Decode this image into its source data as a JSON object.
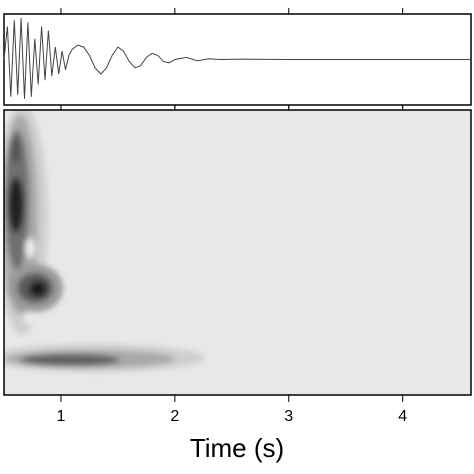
{
  "chart_data": [
    {
      "type": "line",
      "x": [
        0.5,
        0.53,
        0.56,
        0.59,
        0.62,
        0.65,
        0.68,
        0.71,
        0.74,
        0.77,
        0.8,
        0.83,
        0.86,
        0.89,
        0.92,
        0.95,
        0.98,
        1.01,
        1.04,
        1.07,
        1.1,
        1.15,
        1.2,
        1.25,
        1.3,
        1.35,
        1.4,
        1.45,
        1.5,
        1.55,
        1.6,
        1.65,
        1.7,
        1.75,
        1.8,
        1.85,
        1.9,
        1.95,
        2.0,
        2.1,
        2.2,
        2.3,
        2.4,
        2.6,
        3.0,
        3.5,
        4.0,
        4.6
      ],
      "values": [
        0,
        0.8,
        -0.9,
        0.95,
        -0.85,
        1.0,
        -0.95,
        0.9,
        -0.9,
        0.5,
        -0.6,
        0.8,
        -0.5,
        0.7,
        -0.4,
        0.3,
        -0.35,
        0.2,
        -0.25,
        0.1,
        0.25,
        0.35,
        0.3,
        0.1,
        -0.2,
        -0.35,
        -0.2,
        0.1,
        0.3,
        0.2,
        -0.05,
        -0.2,
        -0.15,
        0.05,
        0.15,
        0.1,
        -0.05,
        -0.08,
        0,
        0.05,
        -0.03,
        0.02,
        0,
        0.01,
        0,
        0,
        0,
        0
      ],
      "color": "#444444",
      "xlim": [
        0.5,
        4.6
      ],
      "ylim": [
        -1.1,
        1.1
      ],
      "xticks": [
        1,
        2,
        3,
        4
      ]
    },
    {
      "type": "spectrogram",
      "xlabel": "Time (s)",
      "xlim": [
        0.5,
        4.6
      ],
      "xticks": [
        1,
        2,
        3,
        4
      ]
    }
  ]
}
